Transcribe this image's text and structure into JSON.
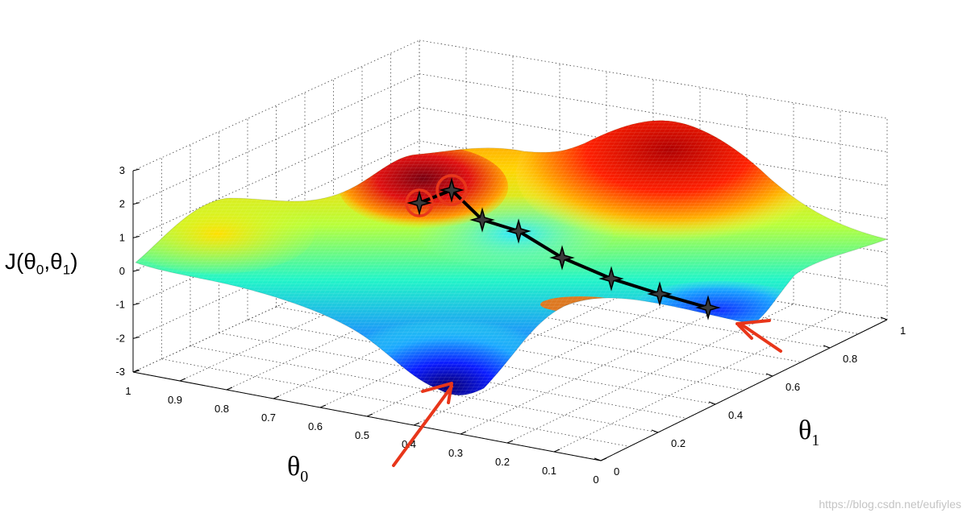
{
  "chart_data": {
    "type": "surface",
    "ylabel_text": "J(θ",
    "ylabel_sub0": "0",
    "ylabel_comma": ",θ",
    "ylabel_sub1": "1",
    "ylabel_close": ")",
    "theta0_label": "θ",
    "theta0_sub": "0",
    "theta1_label": "θ",
    "theta1_sub": "1",
    "z_ticks": [
      "3",
      "2",
      "1",
      "0",
      "-1",
      "-2",
      "-3"
    ],
    "z_range": [
      -3,
      3
    ],
    "theta0_ticks": [
      "1",
      "0.9",
      "0.8",
      "0.7",
      "0.6",
      "0.5",
      "0.4",
      "0.3",
      "0.2",
      "0.1",
      "0"
    ],
    "theta0_range": [
      0,
      1
    ],
    "theta1_ticks": [
      "0",
      "0.2",
      "0.4",
      "0.6",
      "0.8",
      "1"
    ],
    "theta1_range": [
      0,
      1
    ],
    "grid": true,
    "colormap": [
      "#00008f",
      "#0000ff",
      "#00ffff",
      "#ffff00",
      "#ff0000",
      "#800000"
    ],
    "descent_path": {
      "color": "#000000",
      "marker": "star",
      "start_highlight_color": "#e8361a",
      "arrow_color": "#e8361a",
      "points": 8
    }
  },
  "watermark": "https://blog.csdn.net/eufiyles"
}
